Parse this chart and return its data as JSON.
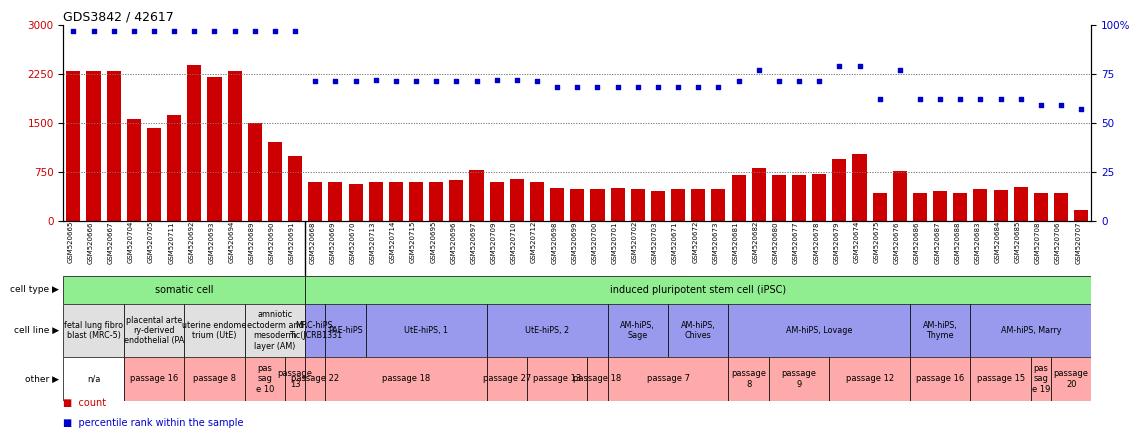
{
  "title": "GDS3842 / 42617",
  "samples": [
    "GSM520665",
    "GSM520666",
    "GSM520667",
    "GSM520704",
    "GSM520705",
    "GSM520711",
    "GSM520692",
    "GSM520693",
    "GSM520694",
    "GSM520689",
    "GSM520690",
    "GSM520691",
    "GSM520668",
    "GSM520669",
    "GSM520670",
    "GSM520713",
    "GSM520714",
    "GSM520715",
    "GSM520695",
    "GSM520696",
    "GSM520697",
    "GSM520709",
    "GSM520710",
    "GSM520712",
    "GSM520698",
    "GSM520699",
    "GSM520700",
    "GSM520701",
    "GSM520702",
    "GSM520703",
    "GSM520671",
    "GSM520672",
    "GSM520673",
    "GSM520681",
    "GSM520682",
    "GSM520680",
    "GSM520677",
    "GSM520678",
    "GSM520679",
    "GSM520674",
    "GSM520675",
    "GSM520676",
    "GSM520686",
    "GSM520687",
    "GSM520688",
    "GSM520683",
    "GSM520684",
    "GSM520685",
    "GSM520708",
    "GSM520706",
    "GSM520707"
  ],
  "counts": [
    2290,
    2290,
    2290,
    1555,
    1420,
    1615,
    2380,
    2195,
    2290,
    1490,
    1210,
    990,
    590,
    590,
    560,
    590,
    590,
    590,
    590,
    620,
    780,
    590,
    635,
    590,
    500,
    490,
    490,
    500,
    490,
    460,
    490,
    490,
    490,
    700,
    800,
    695,
    695,
    715,
    950,
    1020,
    420,
    760,
    430,
    450,
    430,
    490,
    465,
    510,
    430,
    430,
    160
  ],
  "percentiles": [
    97,
    97,
    97,
    97,
    97,
    97,
    97,
    97,
    97,
    97,
    97,
    97,
    71,
    71,
    71,
    72,
    71,
    71,
    71,
    71,
    71,
    72,
    72,
    71,
    68,
    68,
    68,
    68,
    68,
    68,
    68,
    68,
    68,
    71,
    77,
    71,
    71,
    71,
    79,
    79,
    62,
    77,
    62,
    62,
    62,
    62,
    62,
    62,
    59,
    59,
    57
  ],
  "ylim_left": [
    0,
    3000
  ],
  "ylim_right": [
    0,
    100
  ],
  "yticks_left": [
    0,
    750,
    1500,
    2250,
    3000
  ],
  "yticks_right": [
    0,
    25,
    50,
    75,
    100
  ],
  "bar_color": "#cc0000",
  "dot_color": "#0000cc",
  "cell_line_groups": [
    {
      "label": "fetal lung fibro\nblast (MRC-5)",
      "start": 0,
      "end": 2,
      "color": "#e0e0e0"
    },
    {
      "label": "placental arte\nry-derived\nendothelial (PA",
      "start": 3,
      "end": 5,
      "color": "#e0e0e0"
    },
    {
      "label": "uterine endome\ntrium (UtE)",
      "start": 6,
      "end": 8,
      "color": "#e0e0e0"
    },
    {
      "label": "amniotic\nectoderm and\nmesoderm\nlayer (AM)",
      "start": 9,
      "end": 11,
      "color": "#e0e0e0"
    },
    {
      "label": "MRC-hiPS,\nTic(JCRB1331",
      "start": 12,
      "end": 12,
      "color": "#9999ee"
    },
    {
      "label": "PAE-hiPS",
      "start": 13,
      "end": 14,
      "color": "#9999ee"
    },
    {
      "label": "UtE-hiPS, 1",
      "start": 15,
      "end": 20,
      "color": "#9999ee"
    },
    {
      "label": "UtE-hiPS, 2",
      "start": 21,
      "end": 26,
      "color": "#9999ee"
    },
    {
      "label": "AM-hiPS,\nSage",
      "start": 27,
      "end": 29,
      "color": "#9999ee"
    },
    {
      "label": "AM-hiPS,\nChives",
      "start": 30,
      "end": 32,
      "color": "#9999ee"
    },
    {
      "label": "AM-hiPS, Lovage",
      "start": 33,
      "end": 41,
      "color": "#9999ee"
    },
    {
      "label": "AM-hiPS,\nThyme",
      "start": 42,
      "end": 44,
      "color": "#9999ee"
    },
    {
      "label": "AM-hiPS, Marry",
      "start": 45,
      "end": 50,
      "color": "#9999ee"
    }
  ],
  "other_groups": [
    {
      "label": "n/a",
      "start": 0,
      "end": 2,
      "color": "#ffffff"
    },
    {
      "label": "passage 16",
      "start": 3,
      "end": 5,
      "color": "#ffaaaa"
    },
    {
      "label": "passage 8",
      "start": 6,
      "end": 8,
      "color": "#ffaaaa"
    },
    {
      "label": "pas\nsag\ne 10",
      "start": 9,
      "end": 10,
      "color": "#ffaaaa"
    },
    {
      "label": "passage\n13",
      "start": 11,
      "end": 11,
      "color": "#ffaaaa"
    },
    {
      "label": "passage 22",
      "start": 12,
      "end": 12,
      "color": "#ffaaaa"
    },
    {
      "label": "passage 18",
      "start": 13,
      "end": 20,
      "color": "#ffaaaa"
    },
    {
      "label": "passage 27",
      "start": 21,
      "end": 22,
      "color": "#ffaaaa"
    },
    {
      "label": "passage 13",
      "start": 23,
      "end": 25,
      "color": "#ffaaaa"
    },
    {
      "label": "passage 18",
      "start": 26,
      "end": 26,
      "color": "#ffaaaa"
    },
    {
      "label": "passage 7",
      "start": 27,
      "end": 32,
      "color": "#ffaaaa"
    },
    {
      "label": "passage\n8",
      "start": 33,
      "end": 34,
      "color": "#ffaaaa"
    },
    {
      "label": "passage\n9",
      "start": 35,
      "end": 37,
      "color": "#ffaaaa"
    },
    {
      "label": "passage 12",
      "start": 38,
      "end": 41,
      "color": "#ffaaaa"
    },
    {
      "label": "passage 16",
      "start": 42,
      "end": 44,
      "color": "#ffaaaa"
    },
    {
      "label": "passage 15",
      "start": 45,
      "end": 47,
      "color": "#ffaaaa"
    },
    {
      "label": "pas\nsag\ne 19",
      "start": 48,
      "end": 48,
      "color": "#ffaaaa"
    },
    {
      "label": "passage\n20",
      "start": 49,
      "end": 50,
      "color": "#ffaaaa"
    }
  ]
}
